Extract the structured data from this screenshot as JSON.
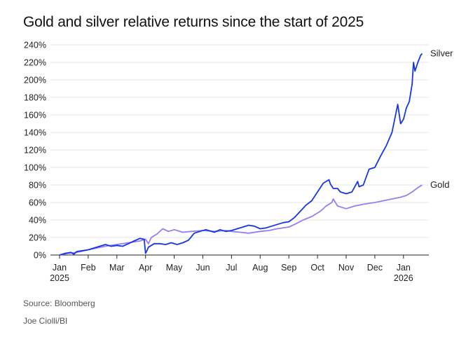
{
  "header": {
    "title": "Gold and silver relative returns since the start of 2025"
  },
  "footer": {
    "source": "Source: Bloomberg",
    "credit": "Joe Ciolli/BI"
  },
  "colors": {
    "silver": "#1536e8",
    "gold": "#9a7cf2",
    "grid": "#e6e6e6",
    "axis": "#222222"
  },
  "chart_data": {
    "type": "line",
    "title": "Gold and silver relative returns since the start of 2025",
    "xlabel": "",
    "ylabel": "",
    "ylim": [
      0,
      240
    ],
    "y_ticks": [
      0,
      20,
      40,
      60,
      80,
      100,
      120,
      140,
      160,
      180,
      200,
      220,
      240
    ],
    "y_tick_labels": [
      "0%",
      "20%",
      "40%",
      "60%",
      "80%",
      "100%",
      "120%",
      "140%",
      "160%",
      "180%",
      "200%",
      "220%",
      "240%"
    ],
    "x_range_months": [
      0,
      12.7
    ],
    "x_ticks": [
      {
        "month": 0,
        "label": "Jan",
        "sub": "2025"
      },
      {
        "month": 1,
        "label": "Feb"
      },
      {
        "month": 2,
        "label": "Mar"
      },
      {
        "month": 3,
        "label": "Apr"
      },
      {
        "month": 4,
        "label": "May"
      },
      {
        "month": 5,
        "label": "Jun"
      },
      {
        "month": 6,
        "label": "Jul"
      },
      {
        "month": 7,
        "label": "Aug"
      },
      {
        "month": 8,
        "label": "Sep"
      },
      {
        "month": 9,
        "label": "Oct"
      },
      {
        "month": 10,
        "label": "Nov"
      },
      {
        "month": 11,
        "label": "Dec"
      },
      {
        "month": 12,
        "label": "Jan",
        "sub": "2026"
      }
    ],
    "grid": true,
    "series": [
      {
        "name": "Silver",
        "color_key": "silver",
        "x": [
          0,
          0.2,
          0.4,
          0.5,
          0.6,
          0.8,
          1.0,
          1.2,
          1.4,
          1.6,
          1.8,
          2.0,
          2.2,
          2.4,
          2.6,
          2.8,
          2.95,
          3.0,
          3.05,
          3.1,
          3.3,
          3.5,
          3.7,
          3.9,
          4.1,
          4.3,
          4.5,
          4.7,
          4.9,
          5.1,
          5.2,
          5.4,
          5.6,
          5.8,
          6.0,
          6.2,
          6.4,
          6.6,
          6.8,
          7.0,
          7.2,
          7.4,
          7.6,
          7.8,
          8.0,
          8.2,
          8.4,
          8.6,
          8.8,
          9.0,
          9.2,
          9.4,
          9.45,
          9.55,
          9.7,
          9.8,
          10.0,
          10.2,
          10.4,
          10.45,
          10.6,
          10.8,
          11.0,
          11.2,
          11.4,
          11.6,
          11.8,
          11.9,
          12.0,
          12.1,
          12.2,
          12.3,
          12.35,
          12.4,
          12.5,
          12.55,
          12.6,
          12.65
        ],
        "values": [
          0,
          2,
          3,
          1,
          4,
          5,
          6,
          8,
          10,
          12,
          10,
          11,
          10,
          13,
          16,
          19,
          18,
          2,
          5,
          9,
          13,
          13,
          12,
          14,
          12,
          14,
          17,
          25,
          27,
          29,
          28,
          26,
          29,
          27,
          28,
          30,
          32,
          34,
          33,
          30,
          31,
          33,
          35,
          37,
          38,
          43,
          50,
          57,
          62,
          72,
          82,
          86,
          81,
          76,
          76,
          72,
          70,
          72,
          84,
          78,
          80,
          98,
          100,
          113,
          125,
          140,
          172,
          150,
          155,
          168,
          175,
          195,
          220,
          210,
          220,
          224,
          228,
          230
        ]
      },
      {
        "name": "Gold",
        "color_key": "gold",
        "x": [
          0,
          0.3,
          0.6,
          1.0,
          1.3,
          1.6,
          2.0,
          2.4,
          2.8,
          3.0,
          3.1,
          3.2,
          3.4,
          3.6,
          3.8,
          4.0,
          4.3,
          4.6,
          5.0,
          5.4,
          5.8,
          6.0,
          6.3,
          6.6,
          7.0,
          7.3,
          7.6,
          8.0,
          8.2,
          8.5,
          8.8,
          9.1,
          9.3,
          9.5,
          9.55,
          9.7,
          10.0,
          10.3,
          10.6,
          11.0,
          11.3,
          11.6,
          11.9,
          12.1,
          12.3,
          12.5,
          12.65
        ],
        "values": [
          0,
          2,
          3,
          6,
          8,
          10,
          12,
          14,
          16,
          18,
          13,
          20,
          24,
          30,
          27,
          29,
          26,
          27,
          28,
          27,
          28,
          27,
          26,
          25,
          27,
          28,
          30,
          32,
          35,
          40,
          44,
          50,
          56,
          60,
          64,
          56,
          53,
          56,
          58,
          60,
          62,
          64,
          66,
          68,
          72,
          77,
          80
        ]
      }
    ]
  }
}
